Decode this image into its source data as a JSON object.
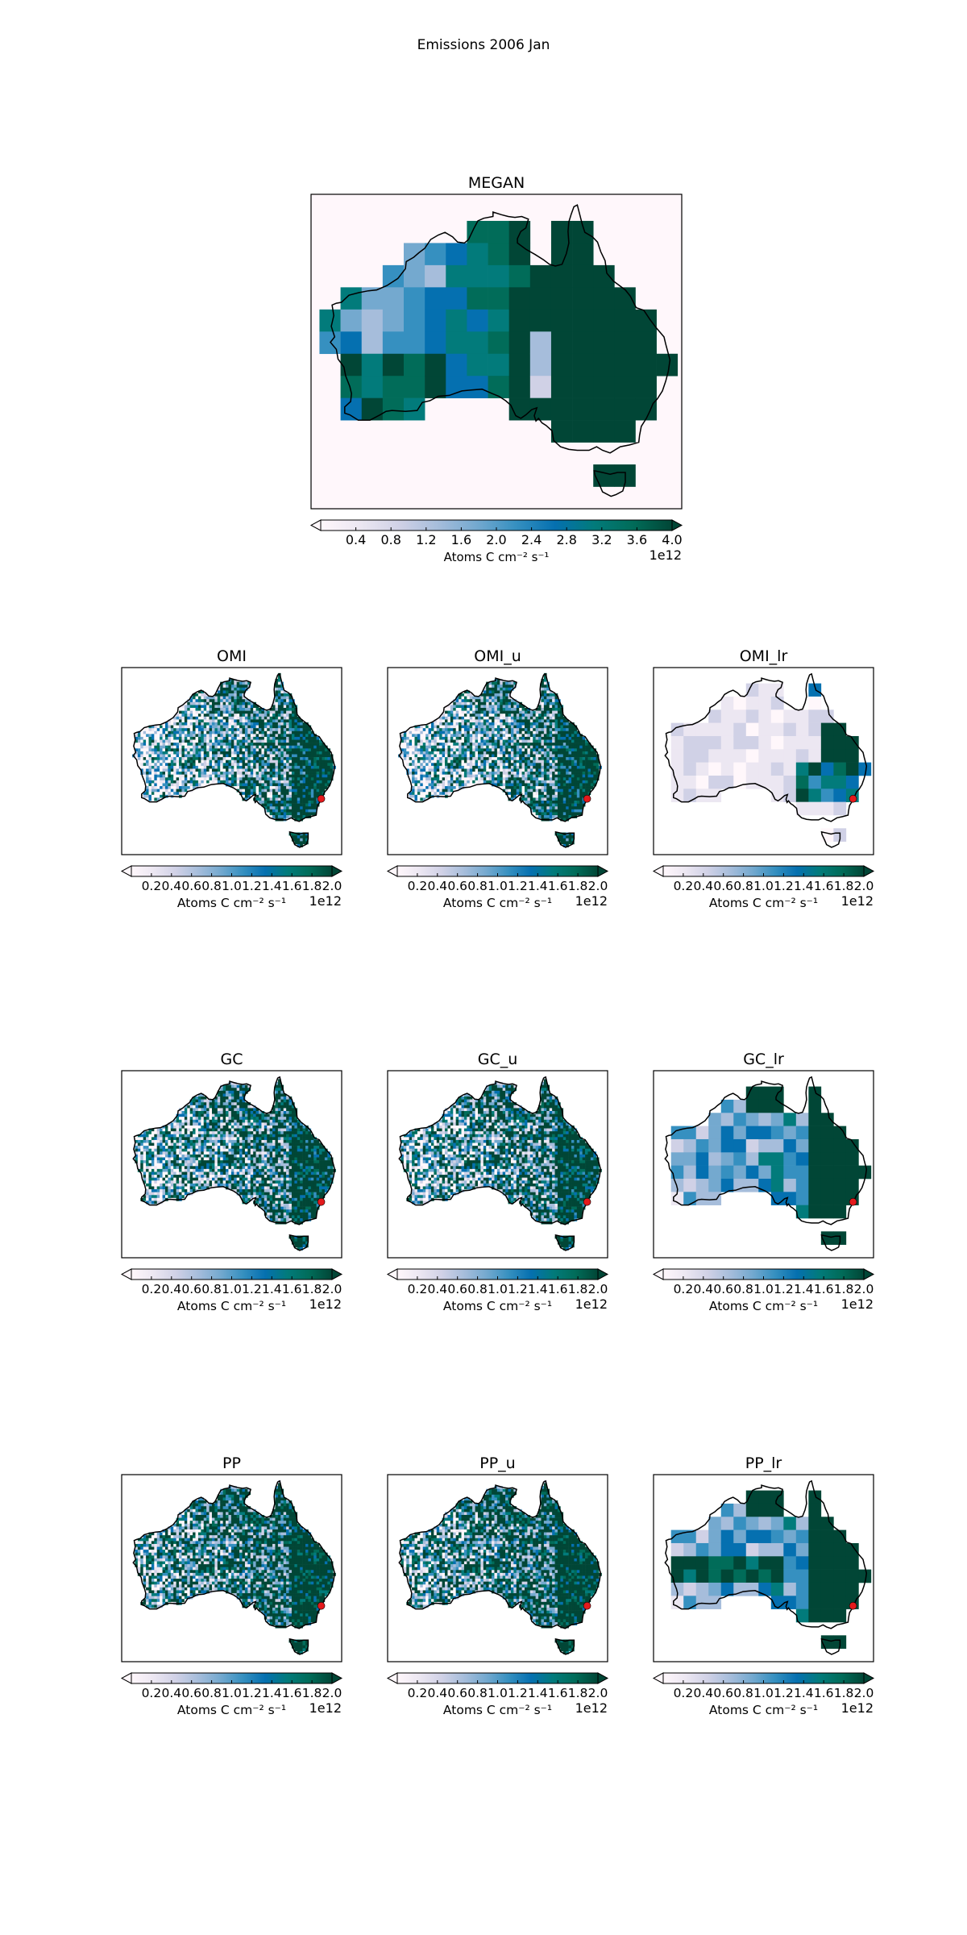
{
  "figure": {
    "title": "Emissions 2006 Jan"
  },
  "colors": {
    "cmap": [
      "#fff7fb",
      "#ece7f2",
      "#d0d1e6",
      "#a6bddb",
      "#74a9cf",
      "#3690c0",
      "#0570b0",
      "#027b7b",
      "#016c59",
      "#014636"
    ],
    "ocean": "#fff7fb",
    "coast": "#000000",
    "site_marker": "#e31a1c"
  },
  "chart_data": [
    {
      "type": "heatmap",
      "title": "MEGAN",
      "colorbar": {
        "label": "Atoms C cm⁻² s⁻¹",
        "ticks": [
          "0.4",
          "0.8",
          "1.2",
          "1.6",
          "2.0",
          "2.4",
          "2.8",
          "3.2",
          "3.6",
          "4.0"
        ],
        "range": [
          0,
          4
        ],
        "offset_text": "1e12",
        "extend": "both"
      },
      "resolution": "low",
      "pattern": "megan"
    },
    {
      "type": "heatmap",
      "title": "OMI",
      "colorbar": {
        "label": "Atoms C cm⁻² s⁻¹",
        "ticks": [
          "0.2",
          "0.4",
          "0.6",
          "0.8",
          "1.0",
          "1.2",
          "1.4",
          "1.6",
          "1.8",
          "2.0"
        ],
        "range": [
          0,
          2
        ],
        "offset_text": "1e12",
        "extend": "both"
      },
      "resolution": "high",
      "pattern": "omi",
      "site_marker": true
    },
    {
      "type": "heatmap",
      "title": "OMI_u",
      "colorbar": {
        "label": "Atoms C cm⁻² s⁻¹",
        "ticks": [
          "0.2",
          "0.4",
          "0.6",
          "0.8",
          "1.0",
          "1.2",
          "1.4",
          "1.6",
          "1.8",
          "2.0"
        ],
        "range": [
          0,
          2
        ],
        "offset_text": "1e12",
        "extend": "both"
      },
      "resolution": "high",
      "pattern": "omi",
      "site_marker": true
    },
    {
      "type": "heatmap",
      "title": "OMI_lr",
      "colorbar": {
        "label": "Atoms C cm⁻² s⁻¹",
        "ticks": [
          "0.2",
          "0.4",
          "0.6",
          "0.8",
          "1.0",
          "1.2",
          "1.4",
          "1.6",
          "1.8",
          "2.0"
        ],
        "range": [
          0,
          2
        ],
        "offset_text": "1e12",
        "extend": "both"
      },
      "resolution": "low",
      "pattern": "omi_lr",
      "site_marker": true
    },
    {
      "type": "heatmap",
      "title": "GC",
      "colorbar": {
        "label": "Atoms C cm⁻² s⁻¹",
        "ticks": [
          "0.2",
          "0.4",
          "0.6",
          "0.8",
          "1.0",
          "1.2",
          "1.4",
          "1.6",
          "1.8",
          "2.0"
        ],
        "range": [
          0,
          2
        ],
        "offset_text": "1e12",
        "extend": "both"
      },
      "resolution": "high",
      "pattern": "gc",
      "site_marker": true
    },
    {
      "type": "heatmap",
      "title": "GC_u",
      "colorbar": {
        "label": "Atoms C cm⁻² s⁻¹",
        "ticks": [
          "0.2",
          "0.4",
          "0.6",
          "0.8",
          "1.0",
          "1.2",
          "1.4",
          "1.6",
          "1.8",
          "2.0"
        ],
        "range": [
          0,
          2
        ],
        "offset_text": "1e12",
        "extend": "both"
      },
      "resolution": "high",
      "pattern": "gc",
      "site_marker": true
    },
    {
      "type": "heatmap",
      "title": "GC_lr",
      "colorbar": {
        "label": "Atoms C cm⁻² s⁻¹",
        "ticks": [
          "0.2",
          "0.4",
          "0.6",
          "0.8",
          "1.0",
          "1.2",
          "1.4",
          "1.6",
          "1.8",
          "2.0"
        ],
        "range": [
          0,
          2
        ],
        "offset_text": "1e12",
        "extend": "both"
      },
      "resolution": "low",
      "pattern": "gc_lr",
      "site_marker": true
    },
    {
      "type": "heatmap",
      "title": "PP",
      "colorbar": {
        "label": "Atoms C cm⁻² s⁻¹",
        "ticks": [
          "0.2",
          "0.4",
          "0.6",
          "0.8",
          "1.0",
          "1.2",
          "1.4",
          "1.6",
          "1.8",
          "2.0"
        ],
        "range": [
          0,
          2
        ],
        "offset_text": "1e12",
        "extend": "both"
      },
      "resolution": "high",
      "pattern": "pp",
      "site_marker": true
    },
    {
      "type": "heatmap",
      "title": "PP_u",
      "colorbar": {
        "label": "Atoms C cm⁻² s⁻¹",
        "ticks": [
          "0.2",
          "0.4",
          "0.6",
          "0.8",
          "1.0",
          "1.2",
          "1.4",
          "1.6",
          "1.8",
          "2.0"
        ],
        "range": [
          0,
          2
        ],
        "offset_text": "1e12",
        "extend": "both"
      },
      "resolution": "high",
      "pattern": "pp",
      "site_marker": true
    },
    {
      "type": "heatmap",
      "title": "PP_lr",
      "colorbar": {
        "label": "Atoms C cm⁻² s⁻¹",
        "ticks": [
          "0.2",
          "0.4",
          "0.6",
          "0.8",
          "1.0",
          "1.2",
          "1.4",
          "1.6",
          "1.8",
          "2.0"
        ],
        "range": [
          0,
          2
        ],
        "offset_text": "1e12",
        "extend": "both"
      },
      "resolution": "low",
      "pattern": "pp_lr",
      "site_marker": true
    }
  ]
}
